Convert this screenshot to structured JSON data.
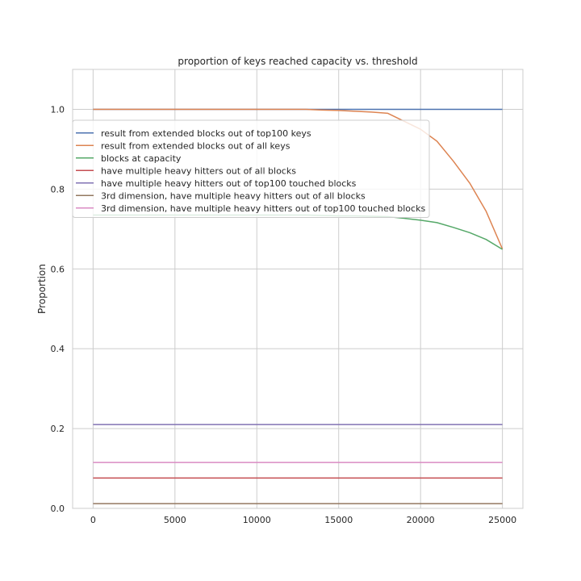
{
  "chart_data": {
    "type": "line",
    "title": "proportion of keys reached capacity vs. threshold",
    "xlabel": "",
    "ylabel": "Proportion",
    "xlim": [
      -1250,
      26250
    ],
    "ylim": [
      0.0,
      1.1
    ],
    "xticks": [
      0,
      5000,
      10000,
      15000,
      20000,
      25000
    ],
    "xtick_labels": [
      "0",
      "5000",
      "10000",
      "15000",
      "20000",
      "25000"
    ],
    "yticks": [
      0.0,
      0.2,
      0.4,
      0.6,
      0.8,
      1.0
    ],
    "ytick_labels": [
      "0.0",
      "0.2",
      "0.4",
      "0.6",
      "0.8",
      "1.0"
    ],
    "grid": true,
    "legend_position": "upper-left",
    "x": [
      0,
      1000,
      2000,
      3000,
      4000,
      5000,
      6000,
      7000,
      8000,
      9000,
      10000,
      11000,
      12000,
      13000,
      14000,
      15000,
      16000,
      17000,
      18000,
      19000,
      20000,
      21000,
      22000,
      23000,
      24000,
      25000
    ],
    "series": [
      {
        "name": "result from extended blocks out of top100 keys",
        "color": "#4c72b0",
        "values": [
          1,
          1,
          1,
          1,
          1,
          1,
          1,
          1,
          1,
          1,
          1,
          1,
          1,
          1,
          1,
          1,
          1,
          1,
          1,
          1,
          1,
          1,
          1,
          1,
          1,
          1
        ]
      },
      {
        "name": "result from extended blocks out of all keys",
        "color": "#dd8452",
        "values": [
          1,
          1,
          1,
          1,
          1,
          1,
          1,
          1,
          1,
          1,
          1,
          1,
          1,
          1.0,
          0.998,
          0.997,
          0.995,
          0.993,
          0.99,
          0.97,
          0.95,
          0.92,
          0.87,
          0.815,
          0.745,
          0.65
        ]
      },
      {
        "name": "blocks at capacity",
        "color": "#55a868",
        "values": [
          0.735,
          0.735,
          0.735,
          0.735,
          0.735,
          0.735,
          0.735,
          0.735,
          0.735,
          0.735,
          0.735,
          0.735,
          0.735,
          0.735,
          0.734,
          0.733,
          0.733,
          0.732,
          0.731,
          0.727,
          0.722,
          0.716,
          0.704,
          0.691,
          0.674,
          0.649
        ]
      },
      {
        "name": "have multiple heavy hitters out of all blocks",
        "color": "#c44e52",
        "values": [
          0.076,
          0.076,
          0.076,
          0.076,
          0.076,
          0.076,
          0.076,
          0.076,
          0.076,
          0.076,
          0.076,
          0.076,
          0.076,
          0.076,
          0.076,
          0.076,
          0.076,
          0.076,
          0.076,
          0.076,
          0.076,
          0.076,
          0.076,
          0.076,
          0.076,
          0.076
        ]
      },
      {
        "name": "have multiple heavy hitters out of top100 touched blocks",
        "color": "#8172b3",
        "values": [
          0.21,
          0.21,
          0.21,
          0.21,
          0.21,
          0.21,
          0.21,
          0.21,
          0.21,
          0.21,
          0.21,
          0.21,
          0.21,
          0.21,
          0.21,
          0.21,
          0.21,
          0.21,
          0.21,
          0.21,
          0.21,
          0.21,
          0.21,
          0.21,
          0.21,
          0.21
        ]
      },
      {
        "name": "3rd dimension, have multiple heavy hitters out of all blocks",
        "color": "#937860",
        "values": [
          0.012,
          0.012,
          0.012,
          0.012,
          0.012,
          0.012,
          0.012,
          0.012,
          0.012,
          0.012,
          0.012,
          0.012,
          0.012,
          0.012,
          0.012,
          0.012,
          0.012,
          0.012,
          0.012,
          0.012,
          0.012,
          0.012,
          0.012,
          0.012,
          0.012,
          0.012
        ]
      },
      {
        "name": "3rd dimension, have multiple heavy hitters out of top100 touched blocks",
        "color": "#da8bc3",
        "values": [
          0.115,
          0.115,
          0.115,
          0.115,
          0.115,
          0.115,
          0.115,
          0.115,
          0.115,
          0.115,
          0.115,
          0.115,
          0.115,
          0.115,
          0.115,
          0.115,
          0.115,
          0.115,
          0.115,
          0.115,
          0.115,
          0.115,
          0.115,
          0.115,
          0.115,
          0.115
        ]
      }
    ]
  }
}
